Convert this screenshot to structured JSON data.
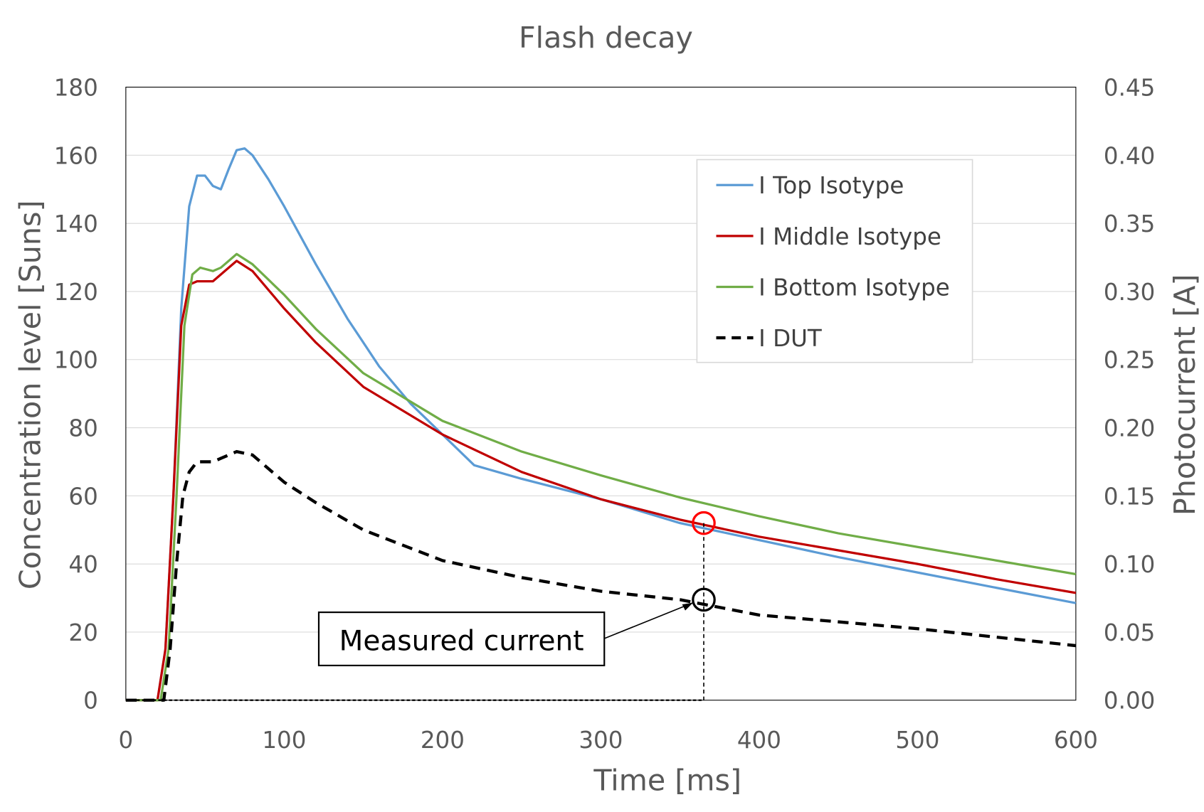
{
  "chart_data": {
    "type": "line",
    "title": "Flash decay",
    "xlabel": "Time [ms]",
    "ylabel": "Concentration level [Suns]",
    "y2label": "Photocurrent [A]",
    "xlim": [
      0,
      600
    ],
    "ylim": [
      0,
      180
    ],
    "y2lim": [
      0,
      0.45
    ],
    "xticks": [
      "0",
      "100",
      "200",
      "300",
      "400",
      "500",
      "600"
    ],
    "yticks": [
      "0",
      "20",
      "40",
      "60",
      "80",
      "100",
      "120",
      "140",
      "160",
      "180"
    ],
    "y2ticks": [
      "0.00",
      "0.05",
      "0.10",
      "0.15",
      "0.20",
      "0.25",
      "0.30",
      "0.35",
      "0.40",
      "0.45"
    ],
    "grid": true,
    "legend_position": "top-right",
    "series": [
      {
        "name": "I Top Isotype",
        "axis": "left",
        "color": "#5b9bd5",
        "dash": false,
        "x": [
          0,
          20,
          25,
          30,
          35,
          40,
          45,
          50,
          55,
          60,
          65,
          70,
          75,
          80,
          90,
          100,
          120,
          140,
          160,
          180,
          200,
          220,
          250,
          300,
          350,
          400,
          450,
          500,
          550,
          600
        ],
        "y": [
          0,
          0,
          15,
          60,
          115,
          145,
          154,
          154,
          151,
          150,
          156,
          161.5,
          162,
          160,
          153,
          145,
          128,
          112,
          98,
          87,
          78,
          69,
          65,
          59,
          52,
          47,
          42,
          37.5,
          33,
          28.5
        ]
      },
      {
        "name": "I Middle Isotype",
        "axis": "left",
        "color": "#c00000",
        "dash": false,
        "x": [
          0,
          20,
          25,
          30,
          35,
          40,
          45,
          55,
          60,
          70,
          80,
          100,
          120,
          150,
          200,
          250,
          300,
          350,
          400,
          450,
          500,
          550,
          600
        ],
        "y": [
          0,
          0,
          15,
          60,
          110,
          122,
          123,
          123,
          125,
          129,
          126,
          115,
          105,
          92,
          78,
          67,
          59,
          53,
          48,
          44,
          40,
          35.5,
          31.5
        ]
      },
      {
        "name": "I Bottom Isotype",
        "axis": "left",
        "color": "#70ad47",
        "dash": false,
        "x": [
          0,
          22,
          27,
          32,
          37,
          42,
          47,
          55,
          60,
          70,
          80,
          100,
          120,
          150,
          200,
          250,
          300,
          350,
          400,
          450,
          500,
          550,
          600
        ],
        "y": [
          0,
          0,
          15,
          60,
          110,
          125,
          127,
          126,
          127,
          131,
          128,
          119,
          109,
          96,
          82,
          73,
          66,
          59.5,
          54,
          49,
          45,
          41,
          37
        ]
      },
      {
        "name": "I DUT",
        "axis": "right",
        "color": "#000000",
        "dash": true,
        "x": [
          0,
          24,
          28,
          32,
          36,
          40,
          45,
          55,
          60,
          70,
          80,
          100,
          120,
          150,
          200,
          250,
          300,
          350,
          400,
          450,
          500,
          550,
          600
        ],
        "y": [
          0,
          0,
          0.0375,
          0.1,
          0.15,
          0.1675,
          0.175,
          0.175,
          0.1775,
          0.1825,
          0.18,
          0.16,
          0.145,
          0.125,
          0.1025,
          0.09,
          0.08,
          0.07375,
          0.0625,
          0.0575,
          0.0525,
          0.04625,
          0.04
        ]
      }
    ],
    "annotation": {
      "text": "Measured current",
      "x": 365,
      "y_left": 52,
      "y_right": 0.07375
    }
  }
}
